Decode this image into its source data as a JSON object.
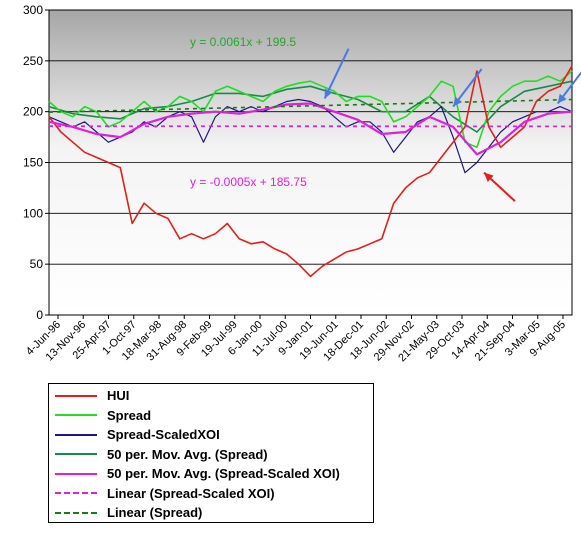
{
  "chart_data": {
    "type": "line",
    "y_axis": {
      "min": 0,
      "max": 300,
      "step": 50,
      "ticks": [
        "0",
        "50",
        "100",
        "150",
        "200",
        "250",
        "300"
      ]
    },
    "x_tick_labels": [
      "4-Jun-96",
      "13-Nov-96",
      "25-Apr-97",
      "1-Oct-97",
      "18-Mar-98",
      "31-Aug-98",
      "9-Feb-99",
      "19-Jul-99",
      "6-Jan-00",
      "11-Jul-00",
      "9-Jan-01",
      "19-Jun-01",
      "18-Dec-01",
      "18-Jun-02",
      "29-Nov-02",
      "21-May-03",
      "29-Oct-03",
      "14-Apr-04",
      "21-Sep-04",
      "3-Mar-05",
      "9-Aug-05"
    ],
    "x_index_range": [
      0,
      22
    ],
    "grid": true,
    "series": [
      {
        "name": "HUI",
        "color": "#e0201a",
        "style": "solid",
        "x": [
          0,
          0.5,
          1,
          1.5,
          2,
          2.5,
          3,
          3.5,
          4,
          4.5,
          5,
          5.5,
          6,
          6.5,
          7,
          7.5,
          8,
          8.5,
          9,
          9.5,
          10,
          10.5,
          11,
          11.5,
          12,
          12.5,
          13,
          13.5,
          14,
          14.5,
          15,
          15.5,
          16,
          16.5,
          17,
          17.5,
          18,
          18.5,
          19,
          19.5,
          20,
          20.5,
          21,
          21.5,
          22
        ],
        "y": [
          195,
          180,
          170,
          160,
          155,
          150,
          145,
          90,
          110,
          100,
          95,
          75,
          80,
          75,
          80,
          90,
          75,
          70,
          72,
          65,
          60,
          50,
          38,
          48,
          55,
          62,
          65,
          70,
          75,
          110,
          125,
          135,
          140,
          155,
          170,
          185,
          240,
          185,
          165,
          175,
          185,
          210,
          220,
          225,
          245
        ]
      },
      {
        "name": "Spread",
        "color": "#22dd22",
        "style": "solid",
        "x": [
          0,
          0.5,
          1,
          1.5,
          2,
          2.5,
          3,
          3.5,
          4,
          4.5,
          5,
          5.5,
          6,
          6.5,
          7,
          7.5,
          8,
          8.5,
          9,
          9.5,
          10,
          10.5,
          11,
          11.5,
          12,
          12.5,
          13,
          13.5,
          14,
          14.5,
          15,
          15.5,
          16,
          16.5,
          17,
          17.5,
          18,
          18.5,
          19,
          19.5,
          20,
          20.5,
          21,
          21.5,
          22
        ],
        "y": [
          210,
          200,
          195,
          205,
          200,
          185,
          190,
          200,
          210,
          200,
          205,
          215,
          210,
          200,
          220,
          225,
          220,
          215,
          210,
          220,
          225,
          228,
          230,
          225,
          220,
          210,
          215,
          215,
          210,
          190,
          195,
          205,
          215,
          230,
          225,
          170,
          165,
          200,
          215,
          225,
          230,
          230,
          235,
          230,
          240
        ]
      },
      {
        "name": "Spread-ScaledXOI",
        "color": "#1a1a80",
        "style": "solid",
        "x": [
          0,
          0.5,
          1,
          1.5,
          2,
          2.5,
          3,
          3.5,
          4,
          4.5,
          5,
          5.5,
          6,
          6.5,
          7,
          7.5,
          8,
          8.5,
          9,
          9.5,
          10,
          10.5,
          11,
          11.5,
          12,
          12.5,
          13,
          13.5,
          14,
          14.5,
          15,
          15.5,
          16,
          16.5,
          17,
          17.5,
          18,
          18.5,
          19,
          19.5,
          20,
          20.5,
          21,
          21.5,
          22
        ],
        "y": [
          195,
          190,
          185,
          190,
          180,
          170,
          175,
          180,
          190,
          185,
          195,
          200,
          195,
          170,
          195,
          205,
          200,
          205,
          200,
          205,
          210,
          212,
          210,
          205,
          195,
          185,
          190,
          190,
          180,
          160,
          175,
          190,
          195,
          205,
          175,
          140,
          150,
          165,
          180,
          190,
          195,
          200,
          200,
          205,
          200
        ]
      },
      {
        "name": "50 per. Mov. Avg. (Spread)",
        "color": "#1a8a4a",
        "style": "solid",
        "x": [
          0,
          1,
          2,
          3,
          4,
          5,
          6,
          7,
          8,
          9,
          10,
          11,
          12,
          13,
          14,
          15,
          16,
          17,
          18,
          19,
          20,
          21,
          22
        ],
        "y": [
          205,
          198,
          195,
          193,
          203,
          205,
          210,
          218,
          218,
          215,
          222,
          225,
          218,
          212,
          200,
          200,
          215,
          195,
          180,
          205,
          220,
          225,
          230
        ]
      },
      {
        "name": "50 per. Mov. Avg. (Spread-Scaled XOI)",
        "color": "#dd22dd",
        "style": "solid",
        "x": [
          0,
          1,
          2,
          3,
          4,
          5,
          6,
          7,
          8,
          9,
          10,
          11,
          12,
          13,
          14,
          15,
          16,
          17,
          18,
          19,
          20,
          21,
          22
        ],
        "y": [
          190,
          185,
          178,
          175,
          188,
          195,
          198,
          200,
          198,
          202,
          207,
          208,
          200,
          192,
          178,
          180,
          195,
          185,
          158,
          170,
          190,
          198,
          200
        ]
      },
      {
        "name": "Linear (Spread-Scaled XOI)",
        "color": "#dd22dd",
        "style": "dashed",
        "x": [
          0,
          22
        ],
        "y": [
          185.75,
          185.5
        ]
      },
      {
        "name": "Linear (Spread)",
        "color": "#1a7a1a",
        "style": "dashed",
        "x": [
          0,
          22
        ],
        "y": [
          199.5,
          212
        ]
      }
    ],
    "annotations": [
      {
        "text": "y = 0.0061x + 199.5",
        "color": "#22aa22"
      },
      {
        "text": "y = -0.0005x + 185.75",
        "color": "#dd22dd"
      }
    ],
    "arrows": [
      {
        "color": "#4a7ae0",
        "from": [
          12.6,
          262
        ],
        "to": [
          11.6,
          213
        ]
      },
      {
        "color": "#4a7ae0",
        "from": [
          18.2,
          242
        ],
        "to": [
          17.0,
          205
        ]
      },
      {
        "color": "#e0201a",
        "from": [
          19.6,
          112
        ],
        "to": [
          18.3,
          140
        ]
      },
      {
        "color": "#4a7ae0",
        "from": [
          22.6,
          245
        ],
        "to": [
          21.4,
          208
        ]
      }
    ],
    "legend": {
      "placement": "bottom-left",
      "entries": [
        {
          "label": "HUI",
          "color": "#e0201a",
          "style": "solid"
        },
        {
          "label": "Spread",
          "color": "#22dd22",
          "style": "solid"
        },
        {
          "label": "Spread-ScaledXOI",
          "color": "#1a1a80",
          "style": "solid"
        },
        {
          "label": "50 per. Mov. Avg. (Spread)",
          "color": "#1a8a4a",
          "style": "solid"
        },
        {
          "label": "50 per. Mov. Avg. (Spread-Scaled XOI)",
          "color": "#dd22dd",
          "style": "solid"
        },
        {
          "label": "Linear (Spread-Scaled XOI)",
          "color": "#dd22dd",
          "style": "dashed"
        },
        {
          "label": "Linear (Spread)",
          "color": "#1a7a1a",
          "style": "dashed"
        }
      ]
    }
  }
}
